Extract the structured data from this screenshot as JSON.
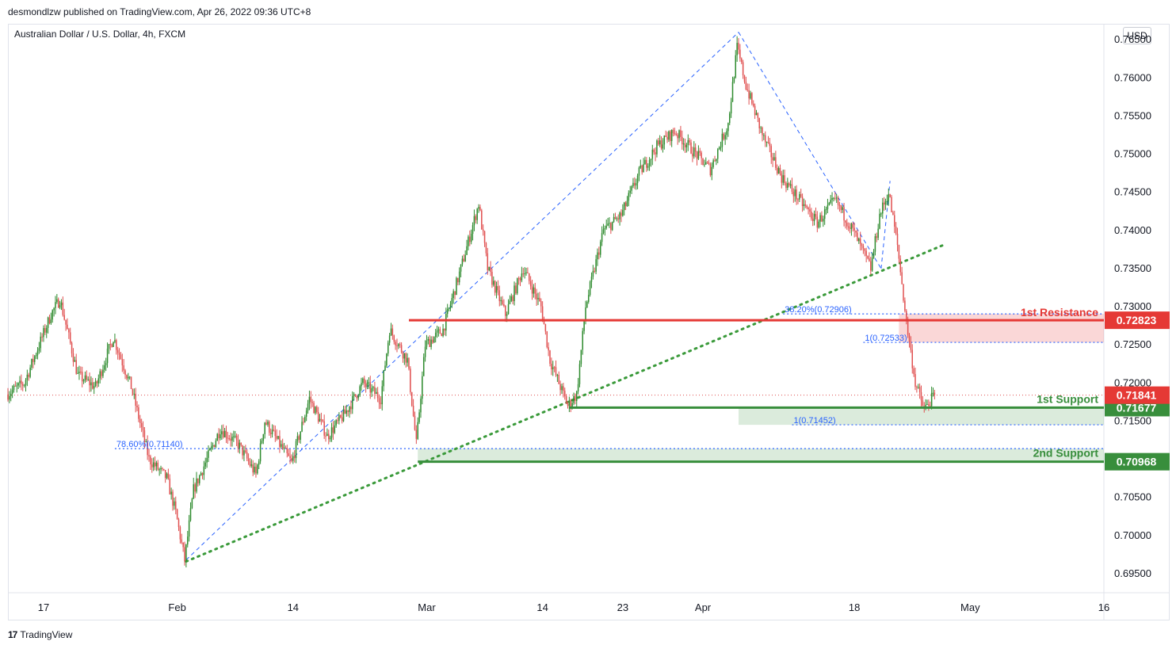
{
  "publisher": "desmondlzw published on TradingView.com, Apr 26, 2022 09:36 UTC+8",
  "symbol": "Australian Dollar / U.S. Dollar, 4h, FXCM",
  "currency": "USD",
  "footer": {
    "brand": "TradingView",
    "logo_text": "17"
  },
  "colors": {
    "up": "#2e8b2e",
    "down": "#e05050",
    "resistance": "#e53935",
    "support": "#388e3c",
    "fib": "#2962ff",
    "trend": "#3a9a3a",
    "axis_text": "#131722"
  },
  "chart_data": {
    "type": "candlestick",
    "title": "Australian Dollar / U.S. Dollar, 4h, FXCM",
    "ylim": [
      0.6925,
      0.767
    ],
    "y_ticks": [
      "0.76500",
      "0.76000",
      "0.75500",
      "0.75000",
      "0.74500",
      "0.74000",
      "0.73500",
      "0.73000",
      "0.72500",
      "0.72000",
      "0.71500",
      "0.71000",
      "0.70500",
      "0.70000",
      "0.69500"
    ],
    "x_ticks": [
      {
        "label": "17",
        "date": "2022-01-17"
      },
      {
        "label": "Feb",
        "date": "2022-02-01"
      },
      {
        "label": "14",
        "date": "2022-02-14"
      },
      {
        "label": "Mar",
        "date": "2022-03-01"
      },
      {
        "label": "14",
        "date": "2022-03-14"
      },
      {
        "label": "23",
        "date": "2022-03-23"
      },
      {
        "label": "Apr",
        "date": "2022-04-01"
      },
      {
        "label": "18",
        "date": "2022-04-18"
      },
      {
        "label": "May",
        "date": "2022-05-01"
      },
      {
        "label": "16",
        "date": "2022-05-16"
      }
    ],
    "xlim": [
      "2022-01-13",
      "2022-05-16"
    ],
    "price_anchors": [
      [
        "2022-01-13",
        0.7185
      ],
      [
        "2022-01-15",
        0.72
      ],
      [
        "2022-01-18",
        0.729
      ],
      [
        "2022-01-19",
        0.731
      ],
      [
        "2022-01-21",
        0.721
      ],
      [
        "2022-01-23",
        0.7195
      ],
      [
        "2022-01-25",
        0.726
      ],
      [
        "2022-01-27",
        0.7195
      ],
      [
        "2022-01-29",
        0.71
      ],
      [
        "2022-01-31",
        0.7075
      ],
      [
        "2022-02-01",
        0.703
      ],
      [
        "2022-02-02",
        0.6968
      ],
      [
        "2022-02-03",
        0.706
      ],
      [
        "2022-02-06",
        0.714
      ],
      [
        "2022-02-08",
        0.712
      ],
      [
        "2022-02-10",
        0.708
      ],
      [
        "2022-02-11",
        0.715
      ],
      [
        "2022-02-14",
        0.7095
      ],
      [
        "2022-02-16",
        0.718
      ],
      [
        "2022-02-18",
        0.713
      ],
      [
        "2022-02-20",
        0.716
      ],
      [
        "2022-02-22",
        0.72
      ],
      [
        "2022-02-24",
        0.718
      ],
      [
        "2022-02-25",
        0.727
      ],
      [
        "2022-02-27",
        0.723
      ],
      [
        "2022-02-28",
        0.712
      ],
      [
        "2022-03-01",
        0.725
      ],
      [
        "2022-03-03",
        0.727
      ],
      [
        "2022-03-05",
        0.735
      ],
      [
        "2022-03-07",
        0.7435
      ],
      [
        "2022-03-08",
        0.735
      ],
      [
        "2022-03-10",
        0.729
      ],
      [
        "2022-03-12",
        0.735
      ],
      [
        "2022-03-14",
        0.73
      ],
      [
        "2022-03-15",
        0.723
      ],
      [
        "2022-03-17",
        0.717
      ],
      [
        "2022-03-18",
        0.7185
      ],
      [
        "2022-03-19",
        0.73
      ],
      [
        "2022-03-21",
        0.74
      ],
      [
        "2022-03-23",
        0.742
      ],
      [
        "2022-03-25",
        0.7475
      ],
      [
        "2022-03-27",
        0.751
      ],
      [
        "2022-03-29",
        0.753
      ],
      [
        "2022-03-31",
        0.7505
      ],
      [
        "2022-04-02",
        0.748
      ],
      [
        "2022-04-04",
        0.754
      ],
      [
        "2022-04-05",
        0.764
      ],
      [
        "2022-04-06",
        0.759
      ],
      [
        "2022-04-08",
        0.752
      ],
      [
        "2022-04-10",
        0.747
      ],
      [
        "2022-04-12",
        0.744
      ],
      [
        "2022-04-14",
        0.741
      ],
      [
        "2022-04-16",
        0.744
      ],
      [
        "2022-04-18",
        0.74
      ],
      [
        "2022-04-20",
        0.735
      ],
      [
        "2022-04-21",
        0.742
      ],
      [
        "2022-04-22",
        0.745
      ],
      [
        "2022-04-23",
        0.738
      ],
      [
        "2022-04-24",
        0.728
      ],
      [
        "2022-04-25",
        0.72
      ],
      [
        "2022-04-26",
        0.7165
      ],
      [
        "2022-04-27",
        0.7182
      ]
    ],
    "last_price": 0.71841,
    "horizontal_levels": [
      {
        "label": "1st Resistance",
        "value": 0.72823,
        "color": "#e53935",
        "start": "2022-02-27",
        "zone": [
          0.72533,
          0.72906
        ],
        "zone_start": "2022-04-23"
      },
      {
        "label": "1st Support",
        "value": 0.71677,
        "color": "#388e3c",
        "start": "2022-03-17",
        "zone": [
          0.71452,
          0.71677
        ],
        "zone_start": "2022-04-05"
      },
      {
        "label": "2nd Support",
        "value": 0.70968,
        "color": "#388e3c",
        "start": "2022-02-28",
        "zone": [
          0.70968,
          0.7114
        ],
        "zone_start": "2022-02-28"
      }
    ],
    "fib_labels": [
      {
        "text": "38.20%(0.72906)",
        "value": 0.72906,
        "start": "2022-04-10"
      },
      {
        "text": "1(0.72533)",
        "value": 0.72533,
        "start": "2022-04-19"
      },
      {
        "text": "1(0.71452)",
        "value": 0.71452,
        "start": "2022-04-11"
      },
      {
        "text": "78.60%(0.71140)",
        "value": 0.7114,
        "start": "2022-01-25"
      }
    ],
    "fib_dashed_lines": [
      [
        [
          "2022-02-02",
          0.6968
        ],
        [
          "2022-04-05",
          0.766
        ]
      ],
      [
        [
          "2022-04-05",
          0.766
        ],
        [
          "2022-04-21",
          0.735
        ]
      ],
      [
        [
          "2022-04-21",
          0.735
        ],
        [
          "2022-04-22",
          0.7465
        ]
      ]
    ],
    "trendline": [
      [
        "2022-02-02",
        0.6966
      ],
      [
        "2022-04-28",
        0.7381
      ]
    ]
  }
}
